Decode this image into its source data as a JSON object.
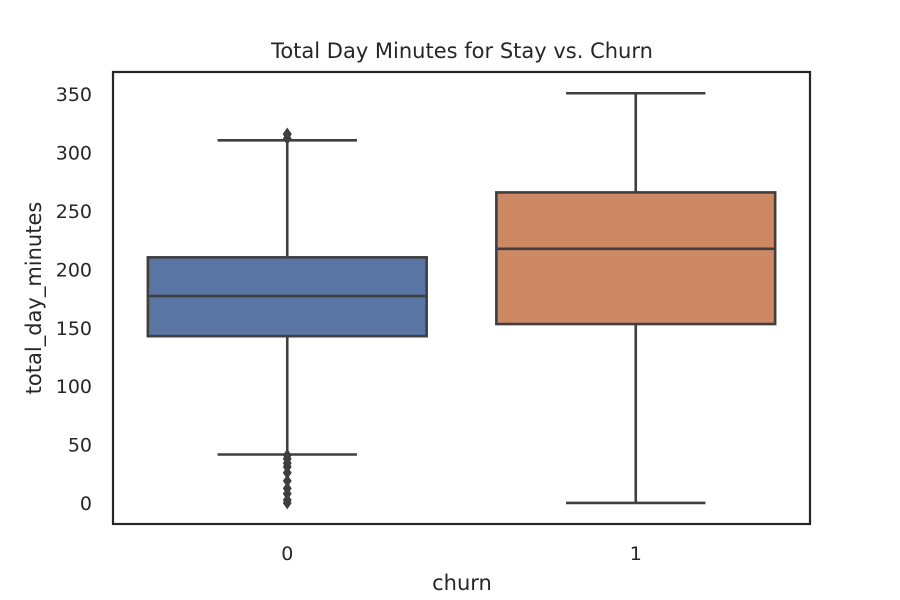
{
  "chart_data": {
    "type": "box",
    "title": "Total Day Minutes for Stay vs. Churn",
    "xlabel": "churn",
    "ylabel": "total_day_minutes",
    "categories": [
      "0",
      "1"
    ],
    "ylim": [
      -18,
      369
    ],
    "yticks": [
      0,
      50,
      100,
      150,
      200,
      250,
      300,
      350
    ],
    "grid": false,
    "boxes": [
      {
        "category": "0",
        "color": "#5875A4",
        "whisker_low": 41.5,
        "q1": 142.8,
        "median": 177.2,
        "q3": 210.3,
        "whisker_high": 310.5,
        "outliers": [
          0,
          2.6,
          7.9,
          12.5,
          18.9,
          25.9,
          30.9,
          34.0,
          37.8,
          40.9,
          312.0,
          315.6,
          316.0
        ]
      },
      {
        "category": "1",
        "color": "#CC8963",
        "whisker_low": 0,
        "q1": 153.2,
        "median": 217.6,
        "q3": 265.9,
        "whisker_high": 350.8,
        "outliers": []
      }
    ]
  }
}
